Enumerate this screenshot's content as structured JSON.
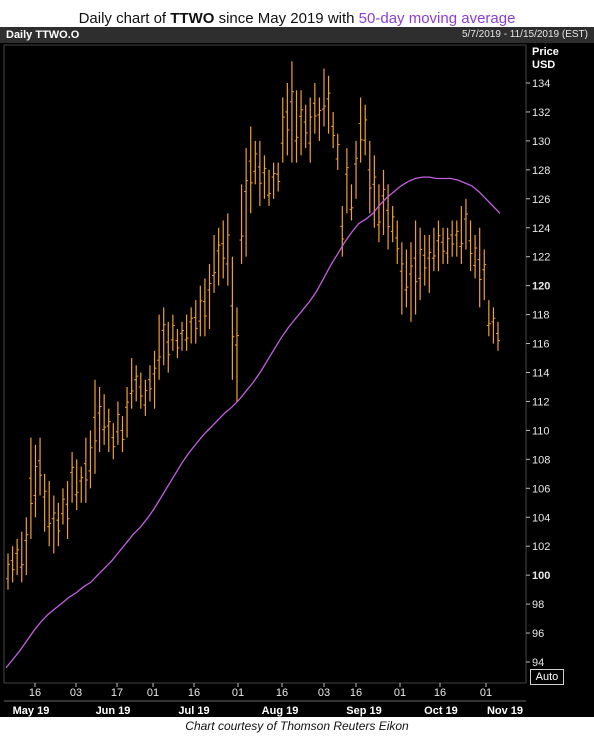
{
  "title": {
    "prefix": "Daily chart of ",
    "symbol": "TTWO",
    "middle": " since May 2019 with ",
    "ma_text": "50-day moving average"
  },
  "header": {
    "chart_label": "Daily TTWO.O",
    "date_range": "5/7/2019 - 11/15/2019 (EST)"
  },
  "auto_button": "Auto",
  "caption": "Chart courtesy of Thomson Reuters Eikon",
  "colors": {
    "price_bars": "#f0a030",
    "moving_average": "#c060e0",
    "background": "#000000",
    "grid": "#2f2f2f"
  },
  "chart_data": {
    "type": "ohlc",
    "ylabel": "Price USD",
    "ylim": [
      93,
      136
    ],
    "y_ticks": [
      94,
      96,
      98,
      100,
      102,
      104,
      106,
      108,
      110,
      112,
      114,
      116,
      118,
      120,
      122,
      124,
      126,
      128,
      130,
      132,
      134
    ],
    "y_bold_ticks": [
      100,
      120
    ],
    "day_ticks": [
      "16",
      "03",
      "17",
      "01",
      "16",
      "01",
      "16",
      "03",
      "16",
      "01",
      "16",
      "01"
    ],
    "month_ticks": [
      "May 19",
      "Jun 19",
      "Jul 19",
      "Aug 19",
      "Sep 19",
      "Oct 19",
      "Nov 19"
    ],
    "grid": false,
    "series": [
      {
        "values": [
          [
            99.0,
            101.5
          ],
          [
            99.5,
            102.0
          ],
          [
            100.0,
            102.5
          ],
          [
            99.5,
            103.0
          ],
          [
            100.0,
            104.0
          ],
          [
            102.5,
            109.5
          ],
          [
            104.0,
            109.0
          ],
          [
            105.5,
            109.5
          ],
          [
            103.0,
            107.0
          ],
          [
            102.0,
            106.5
          ],
          [
            101.5,
            105.5
          ],
          [
            102.0,
            105.0
          ],
          [
            103.5,
            106.0
          ],
          [
            102.5,
            106.5
          ],
          [
            105.0,
            108.5
          ],
          [
            104.5,
            108.0
          ],
          [
            105.0,
            107.5
          ],
          [
            105.0,
            109.5
          ],
          [
            106.0,
            110.0
          ],
          [
            107.0,
            113.5
          ],
          [
            108.5,
            113.0
          ],
          [
            109.0,
            112.5
          ],
          [
            108.5,
            111.5
          ],
          [
            108.0,
            110.5
          ],
          [
            109.0,
            112.0
          ],
          [
            108.5,
            111.0
          ],
          [
            109.5,
            113.0
          ],
          [
            111.5,
            115.0
          ],
          [
            112.0,
            114.5
          ],
          [
            111.5,
            114.0
          ],
          [
            111.0,
            113.5
          ],
          [
            112.0,
            114.5
          ],
          [
            111.5,
            115.5
          ],
          [
            113.5,
            118.0
          ],
          [
            114.5,
            118.5
          ],
          [
            114.0,
            117.5
          ],
          [
            115.5,
            118.0
          ],
          [
            115.0,
            117.0
          ],
          [
            115.5,
            117.5
          ],
          [
            115.5,
            118.0
          ],
          [
            116.0,
            118.5
          ],
          [
            116.0,
            119.0
          ],
          [
            116.5,
            120.0
          ],
          [
            116.5,
            120.5
          ],
          [
            117.0,
            121.5
          ],
          [
            119.5,
            123.5
          ],
          [
            120.0,
            124.0
          ],
          [
            120.5,
            124.5
          ],
          [
            120.0,
            125.0
          ],
          [
            113.5,
            122.0
          ],
          [
            112.0,
            118.5
          ],
          [
            121.5,
            127.0
          ],
          [
            122.0,
            129.5
          ],
          [
            125.0,
            131.0
          ],
          [
            127.0,
            130.0
          ],
          [
            125.5,
            130.0
          ],
          [
            126.0,
            129.0
          ],
          [
            125.5,
            128.0
          ],
          [
            126.0,
            128.5
          ],
          [
            126.5,
            128.5
          ],
          [
            128.5,
            133.0
          ],
          [
            129.0,
            134.0
          ],
          [
            128.5,
            135.5
          ],
          [
            128.5,
            133.5
          ],
          [
            129.0,
            133.5
          ],
          [
            129.5,
            132.5
          ],
          [
            128.5,
            133.0
          ],
          [
            130.5,
            134.0
          ],
          [
            130.0,
            133.0
          ],
          [
            131.0,
            135.0
          ],
          [
            130.5,
            134.5
          ],
          [
            129.5,
            132.0
          ],
          [
            128.0,
            130.5
          ],
          [
            122.0,
            125.5
          ],
          [
            125.0,
            129.5
          ],
          [
            124.5,
            127.0
          ],
          [
            126.0,
            130.0
          ],
          [
            128.5,
            133.0
          ],
          [
            129.0,
            132.5
          ],
          [
            125.0,
            130.0
          ],
          [
            124.0,
            129.0
          ],
          [
            123.0,
            127.0
          ],
          [
            123.5,
            128.0
          ],
          [
            122.5,
            127.0
          ],
          [
            123.0,
            125.5
          ],
          [
            121.5,
            124.5
          ],
          [
            118.0,
            123.0
          ],
          [
            118.5,
            122.5
          ],
          [
            117.5,
            123.0
          ],
          [
            118.0,
            124.5
          ],
          [
            119.0,
            124.0
          ],
          [
            120.0,
            123.5
          ],
          [
            119.5,
            123.5
          ],
          [
            121.0,
            124.0
          ],
          [
            121.0,
            124.5
          ],
          [
            121.5,
            124.0
          ],
          [
            121.5,
            124.0
          ],
          [
            122.0,
            124.5
          ],
          [
            122.0,
            124.5
          ],
          [
            121.5,
            125.5
          ],
          [
            122.5,
            126.0
          ],
          [
            121.0,
            124.5
          ],
          [
            120.5,
            123.5
          ],
          [
            118.5,
            124.0
          ],
          [
            119.0,
            122.5
          ],
          [
            116.5,
            119.0
          ],
          [
            116.0,
            118.5
          ],
          [
            115.5,
            117.5
          ]
        ]
      },
      {
        "values": [
          93.6,
          94.2,
          94.8,
          95.5,
          96.2,
          96.8,
          97.3,
          97.7,
          98.1,
          98.5,
          98.8,
          99.2,
          99.5,
          100.0,
          100.5,
          101.0,
          101.6,
          102.2,
          102.8,
          103.3,
          103.9,
          104.6,
          105.4,
          106.2,
          107.0,
          107.8,
          108.5,
          109.1,
          109.7,
          110.2,
          110.7,
          111.2,
          111.6,
          112.1,
          112.7,
          113.3,
          114.0,
          114.8,
          115.6,
          116.4,
          117.1,
          117.7,
          118.3,
          118.9,
          119.6,
          120.5,
          121.4,
          122.2,
          123.0,
          123.7,
          124.3,
          124.6,
          125.0,
          125.6,
          126.1,
          126.5,
          126.9,
          127.2,
          127.4,
          127.5,
          127.5,
          127.4,
          127.4,
          127.4,
          127.3,
          127.1,
          126.9,
          126.5,
          126.0,
          125.5,
          125.0
        ]
      }
    ]
  }
}
